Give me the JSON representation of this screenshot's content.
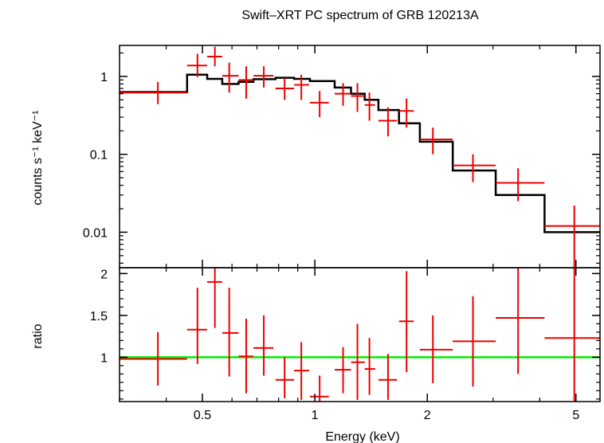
{
  "chart_data": {
    "type": "scatter",
    "title": "Swift–XRT PC spectrum of GRB 120213A",
    "xlabel": "Energy (keV)",
    "xscale": "log",
    "xlim": [
      0.3,
      5.8
    ],
    "x_ticks": [
      {
        "value": 0.5,
        "label": "0.5"
      },
      {
        "value": 1,
        "label": "1"
      },
      {
        "value": 2,
        "label": "2"
      },
      {
        "value": 5,
        "label": "5"
      }
    ],
    "colors": {
      "data": "#ee0000",
      "model": "#000000",
      "unity": "#00ee00"
    },
    "panels": [
      {
        "name": "spectrum",
        "ylabel": "counts s⁻¹ keV⁻¹",
        "yscale": "log",
        "ylim": [
          0.0035,
          2.5
        ],
        "y_ticks": [
          {
            "value": 1,
            "label": "1"
          },
          {
            "value": 0.1,
            "label": "0.1"
          },
          {
            "value": 0.01,
            "label": "0.01"
          }
        ],
        "data": [
          {
            "x": 0.38,
            "x_lo": 0.3,
            "x_hi": 0.455,
            "y": 0.62,
            "y_lo": 0.44,
            "y_hi": 0.85
          },
          {
            "x": 0.485,
            "x_lo": 0.455,
            "x_hi": 0.515,
            "y": 1.38,
            "y_lo": 0.98,
            "y_hi": 1.95
          },
          {
            "x": 0.54,
            "x_lo": 0.515,
            "x_hi": 0.565,
            "y": 1.8,
            "y_lo": 1.35,
            "y_hi": 2.4
          },
          {
            "x": 0.59,
            "x_lo": 0.565,
            "x_hi": 0.625,
            "y": 1.02,
            "y_lo": 0.62,
            "y_hi": 1.5
          },
          {
            "x": 0.655,
            "x_lo": 0.625,
            "x_hi": 0.685,
            "y": 0.9,
            "y_lo": 0.52,
            "y_hi": 1.35
          },
          {
            "x": 0.73,
            "x_lo": 0.685,
            "x_hi": 0.775,
            "y": 1.02,
            "y_lo": 0.72,
            "y_hi": 1.35
          },
          {
            "x": 0.83,
            "x_lo": 0.785,
            "x_hi": 0.88,
            "y": 0.7,
            "y_lo": 0.5,
            "y_hi": 0.95
          },
          {
            "x": 0.92,
            "x_lo": 0.88,
            "x_hi": 0.965,
            "y": 0.78,
            "y_lo": 0.5,
            "y_hi": 1.05
          },
          {
            "x": 1.03,
            "x_lo": 0.97,
            "x_hi": 1.09,
            "y": 0.46,
            "y_lo": 0.3,
            "y_hi": 0.65
          },
          {
            "x": 1.19,
            "x_lo": 1.13,
            "x_hi": 1.25,
            "y": 0.6,
            "y_lo": 0.42,
            "y_hi": 0.82
          },
          {
            "x": 1.3,
            "x_lo": 1.25,
            "x_hi": 1.36,
            "y": 0.56,
            "y_lo": 0.35,
            "y_hi": 0.82
          },
          {
            "x": 1.4,
            "x_lo": 1.36,
            "x_hi": 1.45,
            "y": 0.43,
            "y_lo": 0.27,
            "y_hi": 0.62
          },
          {
            "x": 1.57,
            "x_lo": 1.48,
            "x_hi": 1.66,
            "y": 0.27,
            "y_lo": 0.17,
            "y_hi": 0.4
          },
          {
            "x": 1.76,
            "x_lo": 1.68,
            "x_hi": 1.84,
            "y": 0.36,
            "y_lo": 0.22,
            "y_hi": 0.52
          },
          {
            "x": 2.07,
            "x_lo": 1.91,
            "x_hi": 2.34,
            "y": 0.155,
            "y_lo": 0.1,
            "y_hi": 0.22
          },
          {
            "x": 2.65,
            "x_lo": 2.34,
            "x_hi": 3.05,
            "y": 0.072,
            "y_lo": 0.044,
            "y_hi": 0.1
          },
          {
            "x": 3.5,
            "x_lo": 3.05,
            "x_hi": 4.12,
            "y": 0.043,
            "y_lo": 0.025,
            "y_hi": 0.066
          },
          {
            "x": 4.95,
            "x_lo": 4.12,
            "x_hi": 5.8,
            "y": 0.012,
            "y_lo": 0.0035,
            "y_hi": 0.022
          }
        ],
        "model_step": [
          {
            "x0": 0.3,
            "x1": 0.455,
            "y": 0.63
          },
          {
            "x0": 0.455,
            "x1": 0.515,
            "y": 1.05
          },
          {
            "x0": 0.515,
            "x1": 0.565,
            "y": 0.93
          },
          {
            "x0": 0.565,
            "x1": 0.625,
            "y": 0.8
          },
          {
            "x0": 0.625,
            "x1": 0.685,
            "y": 0.85
          },
          {
            "x0": 0.685,
            "x1": 0.785,
            "y": 0.92
          },
          {
            "x0": 0.785,
            "x1": 0.88,
            "y": 0.96
          },
          {
            "x0": 0.88,
            "x1": 0.97,
            "y": 0.93
          },
          {
            "x0": 0.97,
            "x1": 1.13,
            "y": 0.87
          },
          {
            "x0": 1.13,
            "x1": 1.25,
            "y": 0.72
          },
          {
            "x0": 1.25,
            "x1": 1.36,
            "y": 0.6
          },
          {
            "x0": 1.36,
            "x1": 1.48,
            "y": 0.5
          },
          {
            "x0": 1.48,
            "x1": 1.68,
            "y": 0.37
          },
          {
            "x0": 1.68,
            "x1": 1.91,
            "y": 0.25
          },
          {
            "x0": 1.91,
            "x1": 2.34,
            "y": 0.145
          },
          {
            "x0": 2.34,
            "x1": 3.05,
            "y": 0.062
          },
          {
            "x0": 3.05,
            "x1": 4.12,
            "y": 0.03
          },
          {
            "x0": 4.12,
            "x1": 5.8,
            "y": 0.01
          }
        ]
      },
      {
        "name": "ratio",
        "ylabel": "ratio",
        "yscale": "linear",
        "ylim": [
          0.47,
          2.07
        ],
        "y_ticks": [
          {
            "value": 1,
            "label": "1"
          },
          {
            "value": 1.5,
            "label": "1.5"
          },
          {
            "value": 2,
            "label": "2"
          }
        ],
        "unity_line": 1,
        "data": [
          {
            "x": 0.38,
            "x_lo": 0.3,
            "x_hi": 0.455,
            "y": 0.98,
            "y_lo": 0.66,
            "y_hi": 1.3
          },
          {
            "x": 0.485,
            "x_lo": 0.455,
            "x_hi": 0.515,
            "y": 1.33,
            "y_lo": 0.92,
            "y_hi": 1.83
          },
          {
            "x": 0.54,
            "x_lo": 0.515,
            "x_hi": 0.565,
            "y": 1.9,
            "y_lo": 1.35,
            "y_hi": 2.07
          },
          {
            "x": 0.59,
            "x_lo": 0.565,
            "x_hi": 0.625,
            "y": 1.29,
            "y_lo": 0.77,
            "y_hi": 1.83
          },
          {
            "x": 0.655,
            "x_lo": 0.625,
            "x_hi": 0.685,
            "y": 1.01,
            "y_lo": 0.57,
            "y_hi": 1.46
          },
          {
            "x": 0.73,
            "x_lo": 0.685,
            "x_hi": 0.775,
            "y": 1.11,
            "y_lo": 0.78,
            "y_hi": 1.5
          },
          {
            "x": 0.83,
            "x_lo": 0.785,
            "x_hi": 0.88,
            "y": 0.73,
            "y_lo": 0.51,
            "y_hi": 1.0
          },
          {
            "x": 0.92,
            "x_lo": 0.88,
            "x_hi": 0.965,
            "y": 0.84,
            "y_lo": 0.49,
            "y_hi": 1.18
          },
          {
            "x": 1.03,
            "x_lo": 0.97,
            "x_hi": 1.09,
            "y": 0.53,
            "y_lo": 0.47,
            "y_hi": 0.78
          },
          {
            "x": 1.19,
            "x_lo": 1.13,
            "x_hi": 1.25,
            "y": 0.85,
            "y_lo": 0.57,
            "y_hi": 1.12
          },
          {
            "x": 1.3,
            "x_lo": 1.25,
            "x_hi": 1.36,
            "y": 0.94,
            "y_lo": 0.49,
            "y_hi": 1.4
          },
          {
            "x": 1.4,
            "x_lo": 1.36,
            "x_hi": 1.45,
            "y": 0.86,
            "y_lo": 0.55,
            "y_hi": 1.23
          },
          {
            "x": 1.57,
            "x_lo": 1.48,
            "x_hi": 1.66,
            "y": 0.73,
            "y_lo": 0.49,
            "y_hi": 1.04
          },
          {
            "x": 1.76,
            "x_lo": 1.68,
            "x_hi": 1.84,
            "y": 1.43,
            "y_lo": 0.82,
            "y_hi": 2.03
          },
          {
            "x": 2.07,
            "x_lo": 1.91,
            "x_hi": 2.34,
            "y": 1.09,
            "y_lo": 0.69,
            "y_hi": 1.5
          },
          {
            "x": 2.65,
            "x_lo": 2.34,
            "x_hi": 3.05,
            "y": 1.19,
            "y_lo": 0.65,
            "y_hi": 1.73
          },
          {
            "x": 3.5,
            "x_lo": 3.05,
            "x_hi": 4.12,
            "y": 1.47,
            "y_lo": 0.8,
            "y_hi": 2.07
          },
          {
            "x": 4.95,
            "x_lo": 4.12,
            "x_hi": 5.8,
            "y": 1.23,
            "y_lo": 0.47,
            "y_hi": 2.07
          }
        ]
      }
    ]
  }
}
